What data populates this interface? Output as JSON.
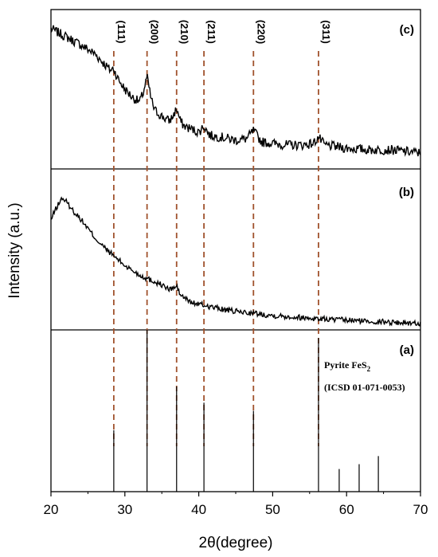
{
  "chart_data": {
    "type": "line",
    "xlabel": "2θ(degree)",
    "ylabel": "Intensity (a.u.)",
    "xlim": [
      20,
      70
    ],
    "xticks": [
      "20",
      "30",
      "40",
      "50",
      "60",
      "70"
    ],
    "peaks": [
      {
        "label": "(111)",
        "x": 28.5
      },
      {
        "label": "(200)",
        "x": 33.0
      },
      {
        "label": "(210)",
        "x": 37.0
      },
      {
        "label": "(211)",
        "x": 40.7
      },
      {
        "label": "(220)",
        "x": 47.4
      },
      {
        "label": "(311)",
        "x": 56.2
      }
    ],
    "panels": [
      {
        "label": "(c)",
        "series": {
          "x": [
            20,
            22,
            24,
            26,
            27,
            28,
            28.5,
            29,
            30,
            31,
            32,
            32.5,
            33,
            33.5,
            34,
            35,
            36,
            36.5,
            37,
            37.5,
            38,
            39,
            40,
            40.7,
            41.5,
            43,
            45,
            46.5,
            47.4,
            48.5,
            50,
            52,
            54,
            55.5,
            56.2,
            57,
            60,
            63,
            66,
            70
          ],
          "y": [
            0.88,
            0.83,
            0.78,
            0.72,
            0.67,
            0.62,
            0.63,
            0.57,
            0.5,
            0.45,
            0.42,
            0.48,
            0.58,
            0.45,
            0.37,
            0.33,
            0.3,
            0.33,
            0.38,
            0.3,
            0.27,
            0.25,
            0.23,
            0.27,
            0.21,
            0.2,
            0.18,
            0.19,
            0.24,
            0.17,
            0.16,
            0.15,
            0.15,
            0.16,
            0.2,
            0.15,
            0.13,
            0.12,
            0.12,
            0.1
          ]
        }
      },
      {
        "label": "(b)",
        "series": {
          "x": [
            20,
            20.5,
            21,
            21.5,
            22,
            22.5,
            23,
            24,
            25,
            26,
            27,
            28,
            29,
            30,
            31,
            32,
            33,
            34,
            35,
            36,
            37,
            37.5,
            38,
            39,
            40,
            42,
            44,
            46,
            48,
            50,
            53,
            56,
            60,
            65,
            70
          ],
          "y": [
            0.68,
            0.74,
            0.78,
            0.82,
            0.8,
            0.77,
            0.74,
            0.69,
            0.63,
            0.57,
            0.52,
            0.48,
            0.44,
            0.4,
            0.37,
            0.34,
            0.32,
            0.3,
            0.28,
            0.25,
            0.27,
            0.22,
            0.2,
            0.17,
            0.16,
            0.14,
            0.12,
            0.11,
            0.1,
            0.09,
            0.08,
            0.07,
            0.06,
            0.05,
            0.04
          ]
        }
      },
      {
        "label": "(a)",
        "reference": [
          "Pyrite FeS2",
          "(ICSD 01-071-0053)"
        ],
        "sticks": [
          {
            "x": 28.5,
            "y": 0.38
          },
          {
            "x": 33.0,
            "y": 1.0
          },
          {
            "x": 37.0,
            "y": 0.65
          },
          {
            "x": 40.7,
            "y": 0.55
          },
          {
            "x": 47.4,
            "y": 0.5
          },
          {
            "x": 56.2,
            "y": 0.95
          },
          {
            "x": 59.0,
            "y": 0.14
          },
          {
            "x": 61.7,
            "y": 0.17
          },
          {
            "x": 64.3,
            "y": 0.22
          }
        ]
      }
    ]
  }
}
